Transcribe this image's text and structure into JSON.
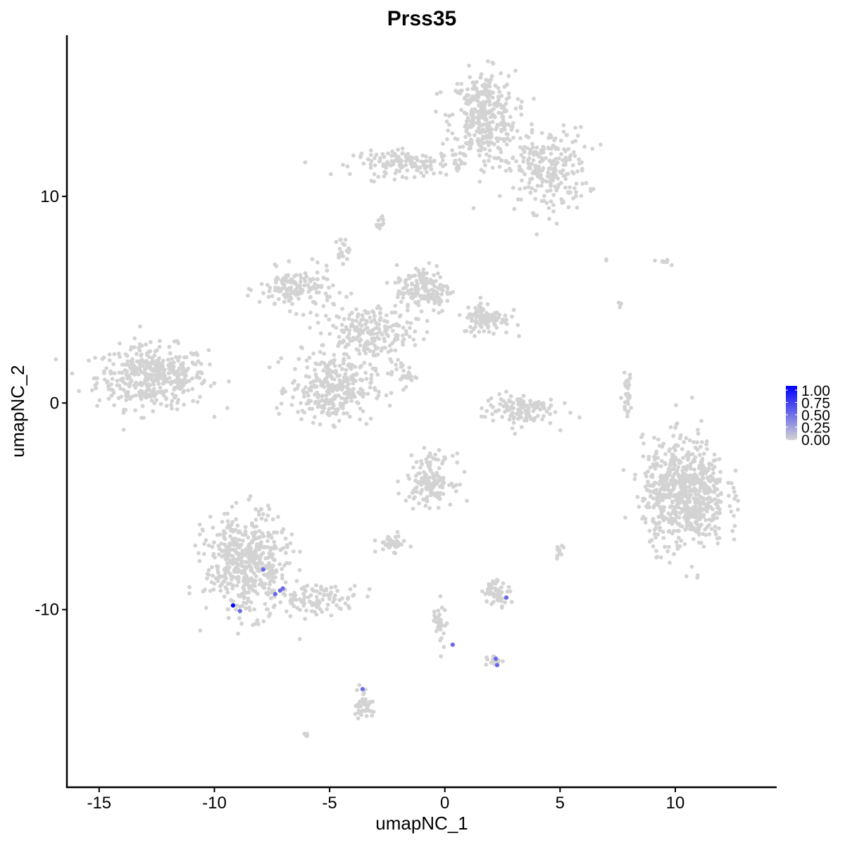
{
  "chart_data": {
    "type": "scatter",
    "title": "Prss35",
    "xlabel": "umapNC_1",
    "ylabel": "umapNC_2",
    "xlim": [
      -16.4,
      14.4
    ],
    "ylim": [
      -18.6,
      17.8
    ],
    "xticks": [
      -15,
      -10,
      -5,
      0,
      5,
      10
    ],
    "yticks": [
      -10,
      0,
      10
    ],
    "grid": false,
    "legend": {
      "placement": "right",
      "type": "colorbar",
      "low_color": "#d3d3d3",
      "high_color": "#0000ff",
      "range": [
        0,
        1
      ],
      "tick_labels": [
        "0.00",
        "0.25",
        "0.50",
        "0.75",
        "1.00"
      ]
    },
    "background_cells": {
      "value": 0,
      "color": "#d3d3d3",
      "clusters": [
        {
          "x": -12.7,
          "y": 1.25,
          "sx": 1.2,
          "sy": 0.75,
          "n": 420
        },
        {
          "x": 1.65,
          "y": 13.85,
          "sx": 0.7,
          "sy": 1.1,
          "n": 350
        },
        {
          "x": 4.4,
          "y": 11.3,
          "sx": 0.9,
          "sy": 1.0,
          "n": 250
        },
        {
          "x": -1.55,
          "y": 11.6,
          "sx": 1.2,
          "sy": 0.3,
          "n": 150
        },
        {
          "x": -2.83,
          "y": 8.74,
          "sx": 0.1,
          "sy": 0.2,
          "n": 10
        },
        {
          "x": -6.44,
          "y": 5.5,
          "sx": 0.8,
          "sy": 0.5,
          "n": 150
        },
        {
          "x": -4.9,
          "y": 0.7,
          "sx": 0.9,
          "sy": 0.8,
          "n": 300
        },
        {
          "x": -0.94,
          "y": 5.5,
          "sx": 0.6,
          "sy": 0.6,
          "n": 150
        },
        {
          "x": 1.8,
          "y": 4.1,
          "sx": 0.5,
          "sy": 0.4,
          "n": 100
        },
        {
          "x": -3.4,
          "y": 3.45,
          "sx": 1.0,
          "sy": 0.6,
          "n": 200
        },
        {
          "x": -4.45,
          "y": 7.4,
          "sx": 0.15,
          "sy": 0.3,
          "n": 20
        },
        {
          "x": -1.85,
          "y": 1.4,
          "sx": 0.3,
          "sy": 0.3,
          "n": 30
        },
        {
          "x": 3.2,
          "y": -0.3,
          "sx": 0.8,
          "sy": 0.4,
          "n": 120
        },
        {
          "x": 10.4,
          "y": -4.4,
          "sx": 0.9,
          "sy": 1.3,
          "n": 700
        },
        {
          "x": 7.9,
          "y": 0.4,
          "sx": 0.1,
          "sy": 0.5,
          "n": 30
        },
        {
          "x": -0.64,
          "y": -3.7,
          "sx": 0.5,
          "sy": 0.6,
          "n": 150
        },
        {
          "x": -2.3,
          "y": -6.8,
          "sx": 0.3,
          "sy": 0.2,
          "n": 40
        },
        {
          "x": -8.6,
          "y": -7.8,
          "sx": 0.9,
          "sy": 1.2,
          "n": 500
        },
        {
          "x": -5.5,
          "y": -9.5,
          "sx": 0.9,
          "sy": 0.35,
          "n": 100
        },
        {
          "x": 2.27,
          "y": -9.15,
          "sx": 0.3,
          "sy": 0.3,
          "n": 60
        },
        {
          "x": -3.54,
          "y": -14.6,
          "sx": 0.2,
          "sy": 0.4,
          "n": 40
        },
        {
          "x": -0.2,
          "y": -10.5,
          "sx": 0.15,
          "sy": 0.6,
          "n": 30
        },
        {
          "x": 2.1,
          "y": -12.5,
          "sx": 0.2,
          "sy": 0.15,
          "n": 15
        },
        {
          "x": 5.0,
          "y": -7.3,
          "sx": 0.1,
          "sy": 0.2,
          "n": 10
        },
        {
          "x": -6.04,
          "y": -16.06,
          "sx": 0.05,
          "sy": 0.05,
          "n": 5
        },
        {
          "x": 9.6,
          "y": 6.86,
          "sx": 0.2,
          "sy": 0.1,
          "n": 8
        },
        {
          "x": 7.6,
          "y": 4.8,
          "sx": 0.05,
          "sy": 0.1,
          "n": 4
        },
        {
          "x": 7.0,
          "y": 6.9,
          "sx": 0.05,
          "sy": 0.05,
          "n": 2
        }
      ]
    },
    "expressing_cells": [
      {
        "x": -9.19,
        "y": -9.8,
        "value": 1.0
      },
      {
        "x": -8.89,
        "y": -10.07,
        "value": 0.5
      },
      {
        "x": -7.88,
        "y": -8.06,
        "value": 0.5
      },
      {
        "x": -7.36,
        "y": -9.25,
        "value": 0.5
      },
      {
        "x": -7.15,
        "y": -9.08,
        "value": 0.5
      },
      {
        "x": -7.03,
        "y": -8.98,
        "value": 0.5
      },
      {
        "x": 2.67,
        "y": -9.42,
        "value": 0.5
      },
      {
        "x": 0.34,
        "y": -11.7,
        "value": 0.5
      },
      {
        "x": 2.21,
        "y": -12.38,
        "value": 0.5
      },
      {
        "x": 2.27,
        "y": -12.69,
        "value": 0.5
      },
      {
        "x": -3.57,
        "y": -13.85,
        "value": 0.5
      }
    ]
  }
}
